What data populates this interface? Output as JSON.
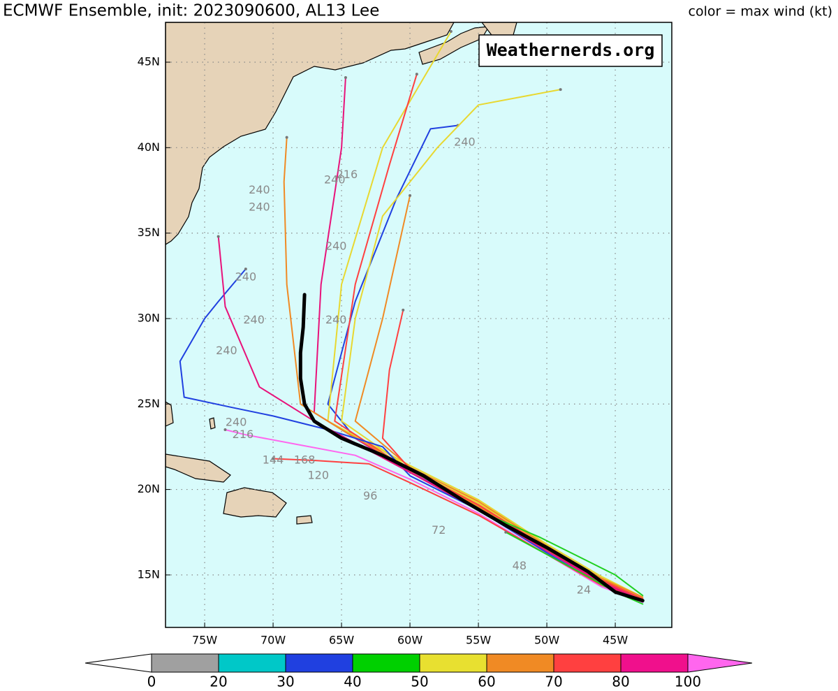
{
  "header": {
    "title": "ECMWF Ensemble, init: 2023090600, AL13 Lee",
    "legend_note": "color = max wind (kt)"
  },
  "watermark": "Weathernerds.org",
  "map": {
    "lonlim": [
      -77.86,
      -40.87
    ],
    "latlim": [
      11.93,
      47.33
    ],
    "lon_ticks": [
      {
        "value": -75,
        "label": "75W"
      },
      {
        "value": -70,
        "label": "70W"
      },
      {
        "value": -65,
        "label": "65W"
      },
      {
        "value": -60,
        "label": "60W"
      },
      {
        "value": -55,
        "label": "55W"
      },
      {
        "value": -50,
        "label": "50W"
      },
      {
        "value": -45,
        "label": "45W"
      }
    ],
    "lat_ticks": [
      {
        "value": 15,
        "label": "15N"
      },
      {
        "value": 20,
        "label": "20N"
      },
      {
        "value": 25,
        "label": "25N"
      },
      {
        "value": 30,
        "label": "30N"
      },
      {
        "value": 35,
        "label": "35N"
      },
      {
        "value": 40,
        "label": "40N"
      },
      {
        "value": 45,
        "label": "45N"
      }
    ],
    "grid": true,
    "tracks": [
      {
        "color": "#2040e0",
        "lon": [
          -43,
          -46,
          -50,
          -55,
          -60,
          -64,
          -66,
          -64,
          -61,
          -58.5,
          -56.5
        ],
        "lat": [
          13.6,
          14.6,
          16.5,
          19,
          21,
          23,
          25,
          31,
          37,
          41.1,
          41.3
        ]
      },
      {
        "color": "#e8d830",
        "lon": [
          -43,
          -46,
          -50,
          -55,
          -60,
          -65,
          -64,
          -62,
          -58,
          -55,
          -49
        ],
        "lat": [
          13.5,
          14.8,
          16.7,
          19.2,
          21.2,
          24,
          30,
          36,
          40,
          42.5,
          43.4
        ]
      },
      {
        "color": "#e8d830",
        "lon": [
          -43,
          -46,
          -50,
          -55,
          -60,
          -66,
          -65,
          -62,
          -57
        ],
        "lat": [
          13.7,
          14.9,
          16.8,
          19.4,
          21.4,
          24,
          32,
          40,
          46.8
        ]
      },
      {
        "color": "#ff4040",
        "lon": [
          -43,
          -46,
          -50,
          -55,
          -60,
          -65.5,
          -64,
          -61.5,
          -59.5
        ],
        "lat": [
          13.6,
          14.7,
          16.6,
          19.1,
          21.1,
          24,
          32,
          39,
          44.3
        ]
      },
      {
        "color": "#e8127a",
        "lon": [
          -43,
          -46,
          -50,
          -55,
          -60,
          -67,
          -66.5,
          -65,
          -64.7
        ],
        "lat": [
          13.5,
          14.5,
          16.4,
          18.9,
          21,
          24.5,
          32,
          40,
          44.1
        ]
      },
      {
        "color": "#f08a24",
        "lon": [
          -43,
          -46,
          -50,
          -55,
          -60,
          -65,
          -68,
          -69,
          -69.2,
          -69
        ],
        "lat": [
          13.6,
          14.6,
          16.5,
          19,
          21.2,
          23.5,
          25,
          32,
          38,
          40.6
        ]
      },
      {
        "color": "#2040e0",
        "lon": [
          -43,
          -46,
          -50,
          -55,
          -60,
          -62,
          -66,
          -70,
          -73,
          -76.5,
          -76.8,
          -75,
          -74,
          -72
        ],
        "lat": [
          13.4,
          14.4,
          16.3,
          18.8,
          20.8,
          22.5,
          23.5,
          24.3,
          24.8,
          25.4,
          27.5,
          30,
          31,
          32.9
        ]
      },
      {
        "color": "#e8127a",
        "lon": [
          -43,
          -46,
          -50,
          -55,
          -60,
          -67,
          -71,
          -73.5,
          -74
        ],
        "lat": [
          13.5,
          14.6,
          16.4,
          18.8,
          21,
          24,
          26,
          30.7,
          34.8
        ]
      },
      {
        "color": "#f08a24",
        "lon": [
          -43,
          -46,
          -50,
          -55,
          -60,
          -64,
          -62,
          -60
        ],
        "lat": [
          13.7,
          14.8,
          16.7,
          19.3,
          21.3,
          24,
          30,
          37.2
        ]
      },
      {
        "color": "#ff4040",
        "lon": [
          -43,
          -46,
          -50,
          -55,
          -60,
          -62,
          -61.5,
          -60.5
        ],
        "lat": [
          13.6,
          14.7,
          16.6,
          19.1,
          21.2,
          23,
          27,
          30.5
        ]
      },
      {
        "color": "#ff66ee",
        "lon": [
          -43,
          -46,
          -50,
          -55,
          -60,
          -64,
          -68,
          -72,
          -73.5
        ],
        "lat": [
          13.4,
          14.3,
          16.2,
          18.6,
          20.6,
          22,
          22.6,
          23.2,
          23.5
        ]
      },
      {
        "color": "#ff4040",
        "lon": [
          -43,
          -46,
          -50,
          -55,
          -60,
          -63,
          -67,
          -70
        ],
        "lat": [
          13.5,
          14.4,
          16.2,
          18.5,
          20.4,
          21.5,
          21.7,
          21.8
        ]
      },
      {
        "color": "#20d020",
        "lon": [
          -43,
          -45,
          -47,
          -50,
          -53
        ],
        "lat": [
          13.3,
          14,
          14.9,
          16.2,
          17.5
        ]
      },
      {
        "color": "#20d020",
        "lon": [
          -43,
          -45,
          -47.5,
          -50.5,
          -54
        ],
        "lat": [
          13.8,
          15,
          16,
          17.2,
          18.4
        ]
      }
    ],
    "mean_track": {
      "color": "#000000",
      "lon": [
        -43,
        -45,
        -47,
        -50,
        -53,
        -56,
        -59,
        -62,
        -65,
        -67,
        -67.7,
        -68,
        -68,
        -67.8,
        -67.7
      ],
      "lat": [
        13.5,
        14,
        15.2,
        16.6,
        17.9,
        19.3,
        20.8,
        22,
        23,
        24,
        25,
        26.5,
        28,
        29.5,
        31.4
      ]
    },
    "hour_labels": [
      {
        "text": "240",
        "lon": -56,
        "lat": 40.3
      },
      {
        "text": "240",
        "lon": -71,
        "lat": 37.5
      },
      {
        "text": "240",
        "lon": -71,
        "lat": 36.5
      },
      {
        "text": "240",
        "lon": -65.5,
        "lat": 38.1
      },
      {
        "text": "216",
        "lon": -64.6,
        "lat": 38.4
      },
      {
        "text": "240",
        "lon": -65.4,
        "lat": 34.2
      },
      {
        "text": "240",
        "lon": -72,
        "lat": 32.4
      },
      {
        "text": "240",
        "lon": -71.4,
        "lat": 29.9
      },
      {
        "text": "240",
        "lon": -73.4,
        "lat": 28.1
      },
      {
        "text": "240",
        "lon": -65.4,
        "lat": 29.9
      },
      {
        "text": "240",
        "lon": -72.7,
        "lat": 23.9
      },
      {
        "text": "216",
        "lon": -72.2,
        "lat": 23.2
      },
      {
        "text": "144",
        "lon": -70,
        "lat": 21.7
      },
      {
        "text": "168",
        "lon": -67.7,
        "lat": 21.7
      },
      {
        "text": "120",
        "lon": -66.7,
        "lat": 20.8
      },
      {
        "text": "96",
        "lon": -62.9,
        "lat": 19.6
      },
      {
        "text": "72",
        "lon": -57.9,
        "lat": 17.6
      },
      {
        "text": "48",
        "lon": -52,
        "lat": 15.5
      },
      {
        "text": "24",
        "lon": -47.3,
        "lat": 14.1
      }
    ]
  },
  "colorbar": {
    "ticks": [
      0,
      20,
      30,
      40,
      50,
      60,
      70,
      80,
      100
    ],
    "colors": [
      "#a0a0a0",
      "#00c8c8",
      "#2040e0",
      "#00d000",
      "#e8e030",
      "#f08a24",
      "#ff4040",
      "#f0108c"
    ],
    "under_color": "#ffffff",
    "over_color": "#ff66ee"
  }
}
